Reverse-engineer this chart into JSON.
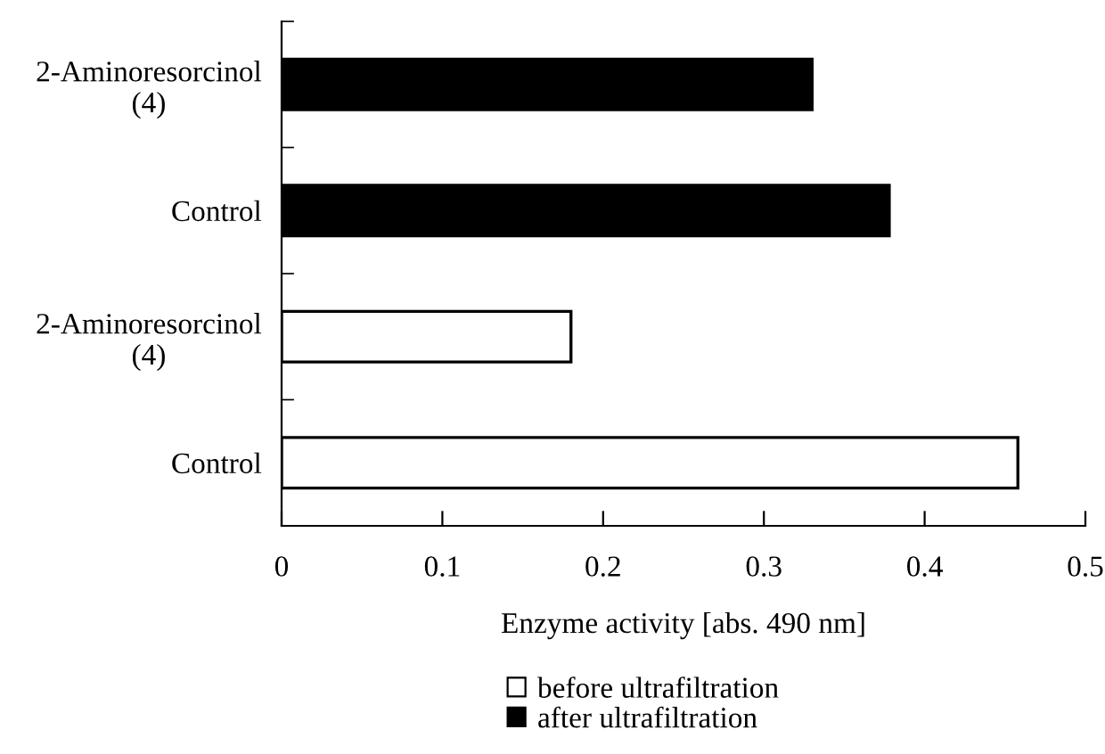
{
  "chart_data": {
    "type": "bar",
    "orientation": "horizontal",
    "xlabel": "Enzyme activity [abs. 490 nm]",
    "categories": [
      "2-Aminoresorcinol\n(4)",
      "Control",
      "2-Aminoresorcinol\n(4)",
      "Control"
    ],
    "series": [
      {
        "name": "before ultrafiltration",
        "color": "#ffffff",
        "values": [
          null,
          null,
          0.18,
          0.458
        ]
      },
      {
        "name": "after ultrafiltration",
        "color": "#000000",
        "values": [
          0.33,
          0.378,
          null,
          null
        ]
      }
    ],
    "xlim": [
      0,
      0.5
    ],
    "xticks": [
      0,
      0.1,
      0.2,
      0.3,
      0.4,
      0.5
    ],
    "grid": false,
    "legend": "bottom"
  }
}
